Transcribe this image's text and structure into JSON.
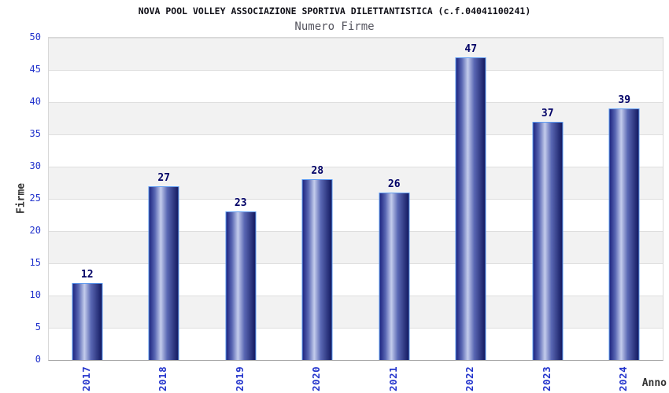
{
  "chart_data": {
    "type": "bar",
    "title": "NOVA POOL VOLLEY ASSOCIAZIONE SPORTIVA DILETTANTISTICA (c.f.04041100241)",
    "subtitle": "Numero Firme",
    "xlabel": "Anno",
    "ylabel": "Firme",
    "categories": [
      "2017",
      "2018",
      "2019",
      "2020",
      "2021",
      "2022",
      "2023",
      "2024"
    ],
    "values": [
      12,
      27,
      23,
      28,
      26,
      47,
      37,
      39
    ],
    "ylim": [
      0,
      50
    ],
    "ytick_step": 5,
    "yticks": [
      0,
      5,
      10,
      15,
      20,
      25,
      30,
      35,
      40,
      45,
      50
    ],
    "grid": "horizontal-bands",
    "legend": "none",
    "colors": {
      "bar_gradient_dark": "#1d2580",
      "bar_gradient_light": "#c3ccec",
      "bar_border": "#5e9cf2",
      "tick_label_blue": "#2233cc",
      "value_label_navy": "#000066",
      "axis_title_gray": "#333333",
      "band_gray": "#f2f2f2",
      "gridline": "#dedede"
    }
  }
}
